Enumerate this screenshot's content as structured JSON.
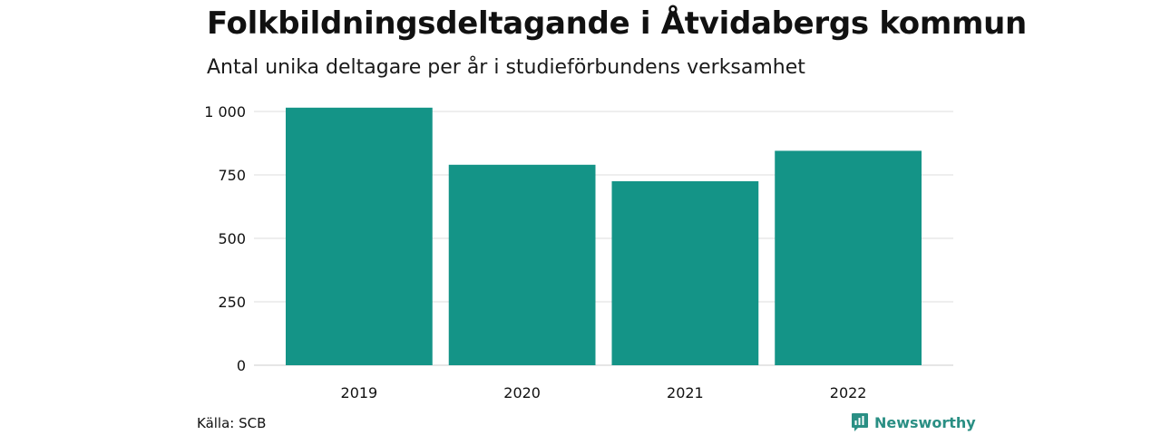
{
  "title": "Folkbildningsdeltagande i Åtvidabergs kommun",
  "subtitle": "Antal unika deltagare per år i studieförbundens verksamhet",
  "source": "Källa: SCB",
  "brand": {
    "name": "Newsworthy",
    "icon": "newsworthy-logo-icon",
    "color": "#2a8f84"
  },
  "colors": {
    "bar": "#149487",
    "grid": "#dddddd",
    "baseline": "#cccccc"
  },
  "chart_data": {
    "type": "bar",
    "categories": [
      "2019",
      "2020",
      "2021",
      "2022"
    ],
    "values": [
      1015,
      790,
      725,
      845
    ],
    "ylim": [
      0,
      1000
    ],
    "yticks": [
      0,
      250,
      500,
      750,
      1000
    ],
    "ytick_labels": [
      "0",
      "250",
      "500",
      "750",
      "1 000"
    ],
    "grid": true,
    "legend": "none"
  }
}
